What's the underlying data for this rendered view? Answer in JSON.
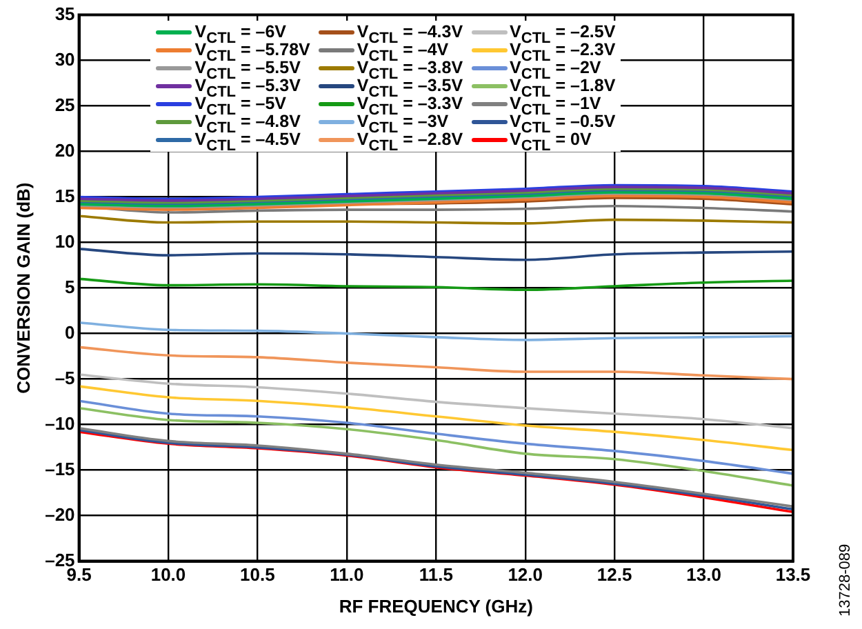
{
  "chart_data": {
    "type": "line",
    "xlabel": "RF FREQUENCY (GHz)",
    "ylabel": "CONVERSION GAIN (dB)",
    "x": [
      9.5,
      10,
      10.5,
      11,
      11.5,
      12,
      12.5,
      13,
      13.5
    ],
    "xlim": [
      9.5,
      13.5
    ],
    "xticks": [
      {
        "value": 9.5,
        "label": "9.5"
      },
      {
        "value": 10,
        "label": "10.0"
      },
      {
        "value": 10.5,
        "label": "10.5"
      },
      {
        "value": 11,
        "label": "11.0"
      },
      {
        "value": 11.5,
        "label": "11.5"
      },
      {
        "value": 12,
        "label": "12.0"
      },
      {
        "value": 12.5,
        "label": "12.5"
      },
      {
        "value": 13,
        "label": "13.0"
      },
      {
        "value": 13.5,
        "label": "13.5"
      }
    ],
    "ylim": [
      -25,
      35
    ],
    "yticks": [
      {
        "value": -25,
        "label": "–25"
      },
      {
        "value": -20,
        "label": "–20"
      },
      {
        "value": -15,
        "label": "–15"
      },
      {
        "value": -10,
        "label": "–10"
      },
      {
        "value": -5,
        "label": "–5"
      },
      0,
      5,
      10,
      15,
      20,
      25,
      30,
      35
    ],
    "grid": true,
    "legend": "top",
    "marker": "none",
    "line_style": "solid",
    "annotations": [
      "13728-089"
    ],
    "series": [
      {
        "name": "V$_{CTL}$ = –6V",
        "color": "#00b050",
        "values": [
          14.2,
          14.0,
          14.2,
          14.5,
          14.8,
          15.1,
          15.5,
          15.4,
          14.8
        ]
      },
      {
        "name": "V$_{CTL}$ = –5.78V",
        "color": "#ed7d31",
        "values": [
          13.8,
          13.6,
          13.8,
          14.1,
          14.4,
          14.7,
          15.1,
          15.0,
          14.4
        ]
      },
      {
        "name": "V$_{CTL}$ = –5.5V",
        "color": "#999999",
        "values": [
          14.0,
          13.8,
          14.0,
          14.3,
          14.6,
          14.9,
          15.3,
          15.2,
          14.6
        ]
      },
      {
        "name": "V$_{CTL}$ = –5.3V",
        "color": "#7030a0",
        "values": [
          14.8,
          14.6,
          14.8,
          15.1,
          15.4,
          15.7,
          16.1,
          16.0,
          15.4
        ]
      },
      {
        "name": "V$_{CTL}$ = –5V",
        "color": "#2a3fe0",
        "values": [
          15.0,
          14.8,
          15.0,
          15.3,
          15.6,
          15.9,
          16.3,
          16.2,
          15.6
        ]
      },
      {
        "name": "V$_{CTL}$ = –4.8V",
        "color": "#5e9a3c",
        "values": [
          14.6,
          14.4,
          14.6,
          14.9,
          15.2,
          15.5,
          15.9,
          15.8,
          15.2
        ]
      },
      {
        "name": "V$_{CTL}$ = –4.5V",
        "color": "#2e6aa6",
        "values": [
          14.4,
          14.2,
          14.4,
          14.7,
          15.0,
          15.3,
          15.7,
          15.6,
          15.0
        ]
      },
      {
        "name": "V$_{CTL}$ = –4.3V",
        "color": "#a5501a",
        "values": [
          14.5,
          14.0,
          14.1,
          14.2,
          14.3,
          14.5,
          14.9,
          14.8,
          14.2
        ]
      },
      {
        "name": "V$_{CTL}$ = –4V",
        "color": "#7a7a7a",
        "values": [
          14.0,
          13.3,
          13.5,
          13.6,
          13.6,
          13.7,
          14.0,
          13.8,
          13.4
        ]
      },
      {
        "name": "V$_{CTL}$ = –3.8V",
        "color": "#9c7a00",
        "values": [
          12.9,
          12.2,
          12.3,
          12.3,
          12.2,
          12.1,
          12.5,
          12.4,
          12.2
        ]
      },
      {
        "name": "V$_{CTL}$ = –3.5V",
        "color": "#26477f",
        "values": [
          9.3,
          8.6,
          8.8,
          8.7,
          8.4,
          8.1,
          8.7,
          8.9,
          9.0
        ]
      },
      {
        "name": "V$_{CTL}$ = –3.3V",
        "color": "#159a15",
        "values": [
          6.0,
          5.3,
          5.4,
          5.2,
          5.1,
          4.8,
          5.2,
          5.6,
          5.8
        ]
      },
      {
        "name": "V$_{CTL}$ = –3V",
        "color": "#7fb0e0",
        "values": [
          1.2,
          0.4,
          0.3,
          0,
          -0.4,
          -0.7,
          -0.5,
          -0.4,
          -0.3
        ]
      },
      {
        "name": "V$_{CTL}$ = –2.8V",
        "color": "#f0955a",
        "values": [
          -1.5,
          -2.4,
          -2.6,
          -3.2,
          -3.7,
          -4.2,
          -4.2,
          -4.6,
          -5.0
        ]
      },
      {
        "name": "V$_{CTL}$ = –2.5V",
        "color": "#bfbfbf",
        "values": [
          -4.5,
          -5.5,
          -5.9,
          -6.6,
          -7.5,
          -8.2,
          -8.8,
          -9.4,
          -10.4
        ]
      },
      {
        "name": "V$_{CTL}$ = –2.3V",
        "color": "#ffc832",
        "values": [
          -5.8,
          -7.0,
          -7.4,
          -8.1,
          -9.1,
          -10.1,
          -10.8,
          -11.7,
          -12.8
        ]
      },
      {
        "name": "V$_{CTL}$ = –2V",
        "color": "#6a8fd8",
        "values": [
          -7.4,
          -8.8,
          -9.1,
          -9.8,
          -11.0,
          -12.1,
          -12.9,
          -14.0,
          -15.4
        ]
      },
      {
        "name": "V$_{CTL}$ = –1.8V",
        "color": "#8cc063",
        "values": [
          -8.2,
          -9.5,
          -9.8,
          -10.5,
          -11.7,
          -13.2,
          -13.8,
          -15.1,
          -16.7
        ]
      },
      {
        "name": "V$_{CTL}$ = –1V",
        "color": "#808080",
        "values": [
          -10.4,
          -11.8,
          -12.3,
          -13.2,
          -14.4,
          -15.3,
          -16.3,
          -17.6,
          -19.0
        ]
      },
      {
        "name": "V$_{CTL}$ = –0.5V",
        "color": "#2f5597",
        "values": [
          -10.6,
          -12.0,
          -12.5,
          -13.3,
          -14.6,
          -15.5,
          -16.5,
          -17.8,
          -19.3
        ]
      },
      {
        "name": "V$_{CTL}$ = 0V",
        "color": "#ff0000",
        "values": [
          -10.8,
          -12.1,
          -12.6,
          -13.4,
          -14.7,
          -15.6,
          -16.6,
          -18.0,
          -19.6
        ]
      }
    ]
  }
}
